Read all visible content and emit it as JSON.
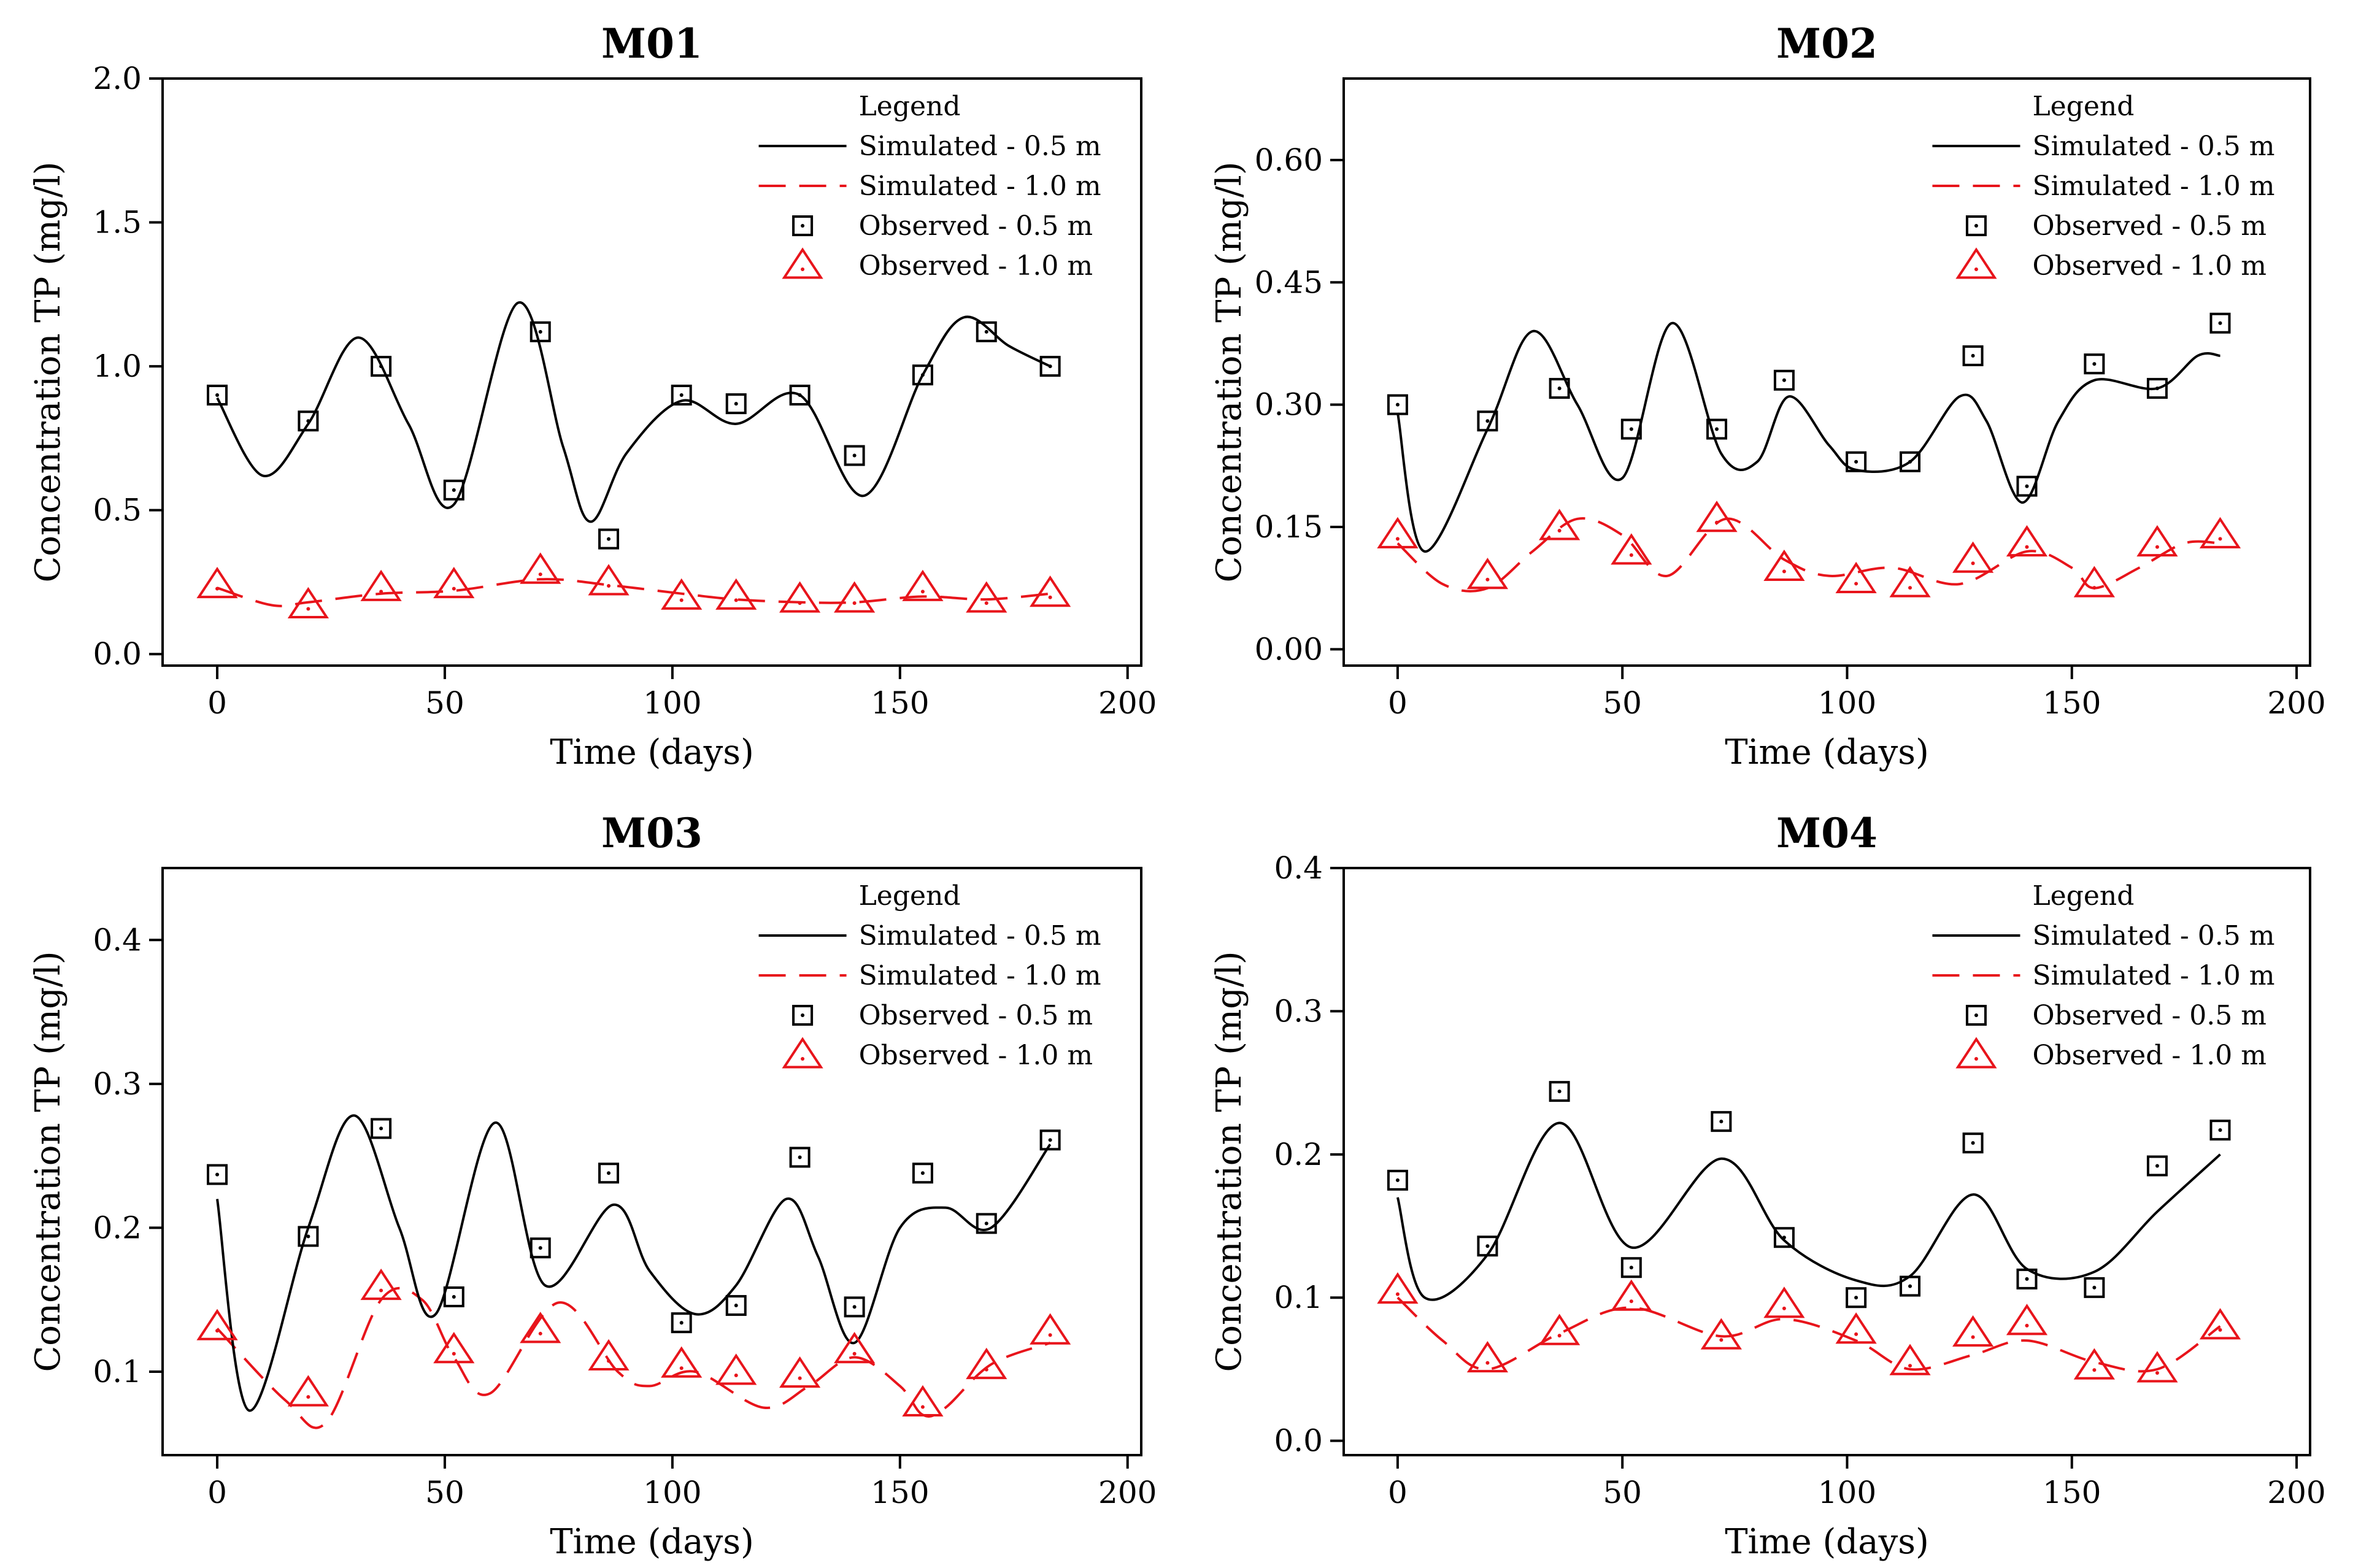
{
  "colors": {
    "simulated_05": "#000000",
    "simulated_10": "#e8141b",
    "observed_05": "#000000",
    "observed_10": "#e8141b"
  },
  "legend": {
    "title": "Legend",
    "items": [
      {
        "label": "Simulated - 0.5 m",
        "kind": "solid-line"
      },
      {
        "label": "Simulated - 1.0 m",
        "kind": "dashed-line"
      },
      {
        "label": "Observed - 0.5 m",
        "kind": "square-marker"
      },
      {
        "label": "Observed - 1.0 m",
        "kind": "triangle-marker"
      }
    ]
  },
  "chart_data": [
    {
      "type": "line",
      "title": "M01",
      "xlabel": "Time (days)",
      "ylabel": "Concentration TP (mg/l)",
      "xlim": [
        -12,
        203
      ],
      "ylim": [
        -0.04,
        2.0
      ],
      "xticks": [
        0,
        50,
        100,
        150,
        200
      ],
      "yticks": [
        0.0,
        0.5,
        1.0,
        1.5,
        2.0
      ],
      "ytick_labels": [
        "0.0",
        "0.5",
        "1.0",
        "1.5",
        "2.0"
      ],
      "series": [
        {
          "name": "Simulated - 0.5 m",
          "x": [
            0,
            10,
            20,
            31,
            42,
            52,
            66,
            76,
            82,
            90,
            102,
            114,
            128,
            142,
            155,
            164,
            174,
            183
          ],
          "y": [
            0.89,
            0.62,
            0.8,
            1.1,
            0.8,
            0.52,
            1.22,
            0.72,
            0.46,
            0.7,
            0.88,
            0.8,
            0.9,
            0.55,
            0.97,
            1.17,
            1.07,
            1.0
          ]
        },
        {
          "name": "Simulated - 1.0 m",
          "x": [
            0,
            12,
            20,
            36,
            52,
            71,
            86,
            102,
            114,
            128,
            140,
            155,
            169,
            183
          ],
          "y": [
            0.23,
            0.17,
            0.18,
            0.21,
            0.22,
            0.26,
            0.24,
            0.21,
            0.19,
            0.18,
            0.18,
            0.2,
            0.19,
            0.21
          ]
        },
        {
          "name": "Observed - 0.5 m",
          "x": [
            0,
            20,
            36,
            52,
            71,
            86,
            102,
            114,
            128,
            140,
            155,
            169,
            183
          ],
          "y": [
            0.9,
            0.81,
            1.0,
            0.57,
            1.12,
            0.4,
            0.9,
            0.87,
            0.9,
            0.69,
            0.97,
            1.12,
            1.0
          ]
        },
        {
          "name": "Observed - 1.0 m",
          "x": [
            0,
            20,
            36,
            52,
            71,
            86,
            102,
            114,
            128,
            140,
            155,
            169,
            183
          ],
          "y": [
            0.24,
            0.17,
            0.23,
            0.24,
            0.29,
            0.25,
            0.2,
            0.2,
            0.19,
            0.19,
            0.23,
            0.19,
            0.21
          ]
        }
      ]
    },
    {
      "type": "line",
      "title": "M02",
      "xlabel": "Time (days)",
      "ylabel": "Concentration TP (mg/l)",
      "xlim": [
        -12,
        203
      ],
      "ylim": [
        -0.02,
        0.7
      ],
      "xticks": [
        0,
        50,
        100,
        150,
        200
      ],
      "yticks": [
        0.0,
        0.15,
        0.3,
        0.45,
        0.6
      ],
      "ytick_labels": [
        "0.00",
        "0.15",
        "0.30",
        "0.45",
        "0.60"
      ],
      "series": [
        {
          "name": "Simulated - 0.5 m",
          "x": [
            0,
            6,
            20,
            30,
            40,
            50,
            61,
            72,
            80,
            87,
            96,
            102,
            114,
            125,
            131,
            139,
            147,
            155,
            169,
            178,
            183
          ],
          "y": [
            0.29,
            0.12,
            0.27,
            0.39,
            0.3,
            0.21,
            0.4,
            0.24,
            0.23,
            0.31,
            0.25,
            0.22,
            0.23,
            0.31,
            0.28,
            0.18,
            0.28,
            0.33,
            0.32,
            0.36,
            0.36
          ]
        },
        {
          "name": "Simulated - 1.0 m",
          "x": [
            0,
            10,
            20,
            30,
            40,
            50,
            60,
            73,
            86,
            96,
            110,
            125,
            140,
            150,
            155,
            165,
            175,
            183
          ],
          "y": [
            0.13,
            0.08,
            0.075,
            0.12,
            0.16,
            0.14,
            0.09,
            0.16,
            0.11,
            0.09,
            0.1,
            0.08,
            0.12,
            0.1,
            0.075,
            0.1,
            0.13,
            0.13
          ]
        },
        {
          "name": "Observed - 0.5 m",
          "x": [
            0,
            20,
            36,
            52,
            71,
            86,
            102,
            114,
            128,
            140,
            155,
            169,
            183
          ],
          "y": [
            0.3,
            0.28,
            0.32,
            0.27,
            0.27,
            0.33,
            0.23,
            0.23,
            0.36,
            0.2,
            0.35,
            0.32,
            0.4
          ]
        },
        {
          "name": "Observed - 1.0 m",
          "x": [
            0,
            20,
            36,
            52,
            71,
            86,
            102,
            114,
            128,
            140,
            155,
            169,
            183
          ],
          "y": [
            0.14,
            0.09,
            0.15,
            0.12,
            0.16,
            0.1,
            0.085,
            0.08,
            0.11,
            0.13,
            0.08,
            0.13,
            0.14
          ]
        }
      ]
    },
    {
      "type": "line",
      "title": "M03",
      "xlabel": "Time (days)",
      "ylabel": "Concentration TP (mg/l)",
      "xlim": [
        -12,
        203
      ],
      "ylim": [
        0.042,
        0.45
      ],
      "xticks": [
        0,
        50,
        100,
        150,
        200
      ],
      "yticks": [
        0.1,
        0.2,
        0.3,
        0.4
      ],
      "ytick_labels": [
        "0.1",
        "0.2",
        "0.3",
        "0.4"
      ],
      "series": [
        {
          "name": "Simulated - 0.5 m",
          "x": [
            0,
            7,
            20,
            30,
            40,
            48,
            61,
            72,
            87,
            95,
            105,
            114,
            125,
            132,
            140,
            150,
            160,
            170,
            183
          ],
          "y": [
            0.22,
            0.073,
            0.2,
            0.278,
            0.2,
            0.14,
            0.273,
            0.16,
            0.216,
            0.17,
            0.14,
            0.16,
            0.22,
            0.18,
            0.12,
            0.2,
            0.214,
            0.2,
            0.258
          ]
        },
        {
          "name": "Simulated - 1.0 m",
          "x": [
            0,
            15,
            24,
            36,
            45,
            52,
            60,
            75,
            88,
            95,
            105,
            120,
            130,
            140,
            150,
            155,
            160,
            170,
            183
          ],
          "y": [
            0.13,
            0.08,
            0.065,
            0.15,
            0.15,
            0.11,
            0.085,
            0.148,
            0.1,
            0.09,
            0.1,
            0.075,
            0.09,
            0.11,
            0.09,
            0.07,
            0.075,
            0.105,
            0.12
          ]
        },
        {
          "name": "Observed - 0.5 m",
          "x": [
            0,
            20,
            36,
            52,
            71,
            86,
            102,
            114,
            128,
            140,
            155,
            169,
            183
          ],
          "y": [
            0.237,
            0.194,
            0.269,
            0.152,
            0.186,
            0.238,
            0.134,
            0.146,
            0.249,
            0.145,
            0.238,
            0.203,
            0.261
          ]
        },
        {
          "name": "Observed - 1.0 m",
          "x": [
            0,
            20,
            36,
            52,
            71,
            86,
            102,
            114,
            128,
            140,
            155,
            169,
            183
          ],
          "y": [
            0.131,
            0.085,
            0.159,
            0.115,
            0.129,
            0.11,
            0.105,
            0.1,
            0.098,
            0.115,
            0.078,
            0.104,
            0.128
          ]
        }
      ]
    },
    {
      "type": "line",
      "title": "M04",
      "xlabel": "Time (days)",
      "ylabel": "Concentration TP (mg/l)",
      "xlim": [
        -12,
        203
      ],
      "ylim": [
        -0.01,
        0.4
      ],
      "xticks": [
        0,
        50,
        100,
        150,
        200
      ],
      "yticks": [
        0.0,
        0.1,
        0.2,
        0.3,
        0.4
      ],
      "ytick_labels": [
        "0.0",
        "0.1",
        "0.2",
        "0.3",
        "0.4"
      ],
      "series": [
        {
          "name": "Simulated - 0.5 m",
          "x": [
            0,
            6,
            20,
            36,
            52,
            72,
            86,
            102,
            114,
            128,
            140,
            155,
            169,
            183
          ],
          "y": [
            0.17,
            0.1,
            0.13,
            0.222,
            0.135,
            0.197,
            0.14,
            0.112,
            0.115,
            0.172,
            0.12,
            0.118,
            0.16,
            0.2
          ]
        },
        {
          "name": "Simulated - 1.0 m",
          "x": [
            0,
            10,
            20,
            36,
            52,
            72,
            86,
            102,
            114,
            128,
            140,
            155,
            169,
            183
          ],
          "y": [
            0.1,
            0.07,
            0.05,
            0.075,
            0.093,
            0.073,
            0.085,
            0.07,
            0.05,
            0.06,
            0.07,
            0.055,
            0.05,
            0.08
          ]
        },
        {
          "name": "Observed - 0.5 m",
          "x": [
            0,
            20,
            36,
            52,
            72,
            86,
            102,
            114,
            128,
            140,
            155,
            169,
            183
          ],
          "y": [
            0.182,
            0.136,
            0.244,
            0.121,
            0.223,
            0.142,
            0.1,
            0.108,
            0.208,
            0.113,
            0.107,
            0.192,
            0.217
          ]
        },
        {
          "name": "Observed - 1.0 m",
          "x": [
            0,
            20,
            36,
            52,
            72,
            86,
            102,
            114,
            128,
            140,
            155,
            169,
            183
          ],
          "y": [
            0.105,
            0.057,
            0.076,
            0.1,
            0.073,
            0.095,
            0.077,
            0.055,
            0.075,
            0.083,
            0.052,
            0.05,
            0.08
          ]
        }
      ]
    }
  ]
}
